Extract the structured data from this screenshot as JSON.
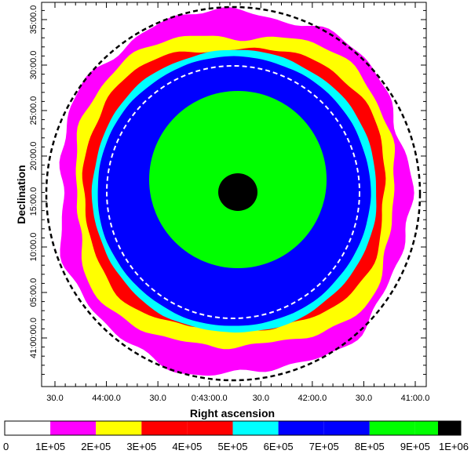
{
  "chart_data": {
    "type": "heatmap",
    "title": "",
    "xlabel": "Right ascension",
    "ylabel": "Declination",
    "x_ticks": [
      "30.0",
      "44:00.0",
      "30.0",
      "0:43:00.0",
      "30.0",
      "42:00.0",
      "30.0",
      "41:00.0"
    ],
    "y_ticks": [
      "41:00:00.0",
      "05:00.0",
      "10:00.0",
      "15:00.0",
      "20:00.0",
      "25:00.0",
      "30:00.0",
      "35:00.0"
    ],
    "colorbar": {
      "labels": [
        "0",
        "1E+05",
        "2E+05",
        "3E+05",
        "4E+05",
        "5E+05",
        "6E+05",
        "7E+05",
        "8E+05",
        "9E+05",
        "1E+06"
      ],
      "bins": [
        {
          "range": [
            0,
            100000
          ],
          "color": "#ffffff"
        },
        {
          "range": [
            100000,
            200000
          ],
          "color": "#ff00ff"
        },
        {
          "range": [
            200000,
            300000
          ],
          "color": "#ffff00"
        },
        {
          "range": [
            300000,
            400000
          ],
          "color": "#ff0000"
        },
        {
          "range": [
            400000,
            500000
          ],
          "color": "#ff0000"
        },
        {
          "range": [
            500000,
            600000
          ],
          "color": "#00ffff"
        },
        {
          "range": [
            600000,
            700000
          ],
          "color": "#0000ff"
        },
        {
          "range": [
            700000,
            800000
          ],
          "color": "#0000ff"
        },
        {
          "range": [
            800000,
            900000
          ],
          "color": "#00ff00"
        },
        {
          "range": [
            900000,
            950000
          ],
          "color": "#00ff00"
        },
        {
          "range": [
            950000,
            1000000
          ],
          "color": "#000000"
        }
      ]
    },
    "contour_levels": [
      {
        "level": "1E+05-2E+05",
        "color": "#ff00ff"
      },
      {
        "level": "2E+05-3E+05",
        "color": "#ffff00"
      },
      {
        "level": "3E+05-5E+05",
        "color": "#ff0000"
      },
      {
        "level": "5E+05-6E+05",
        "color": "#00ffff"
      },
      {
        "level": "6E+05-8E+05",
        "color": "#0000ff"
      },
      {
        "level": "8E+05-9.5E+05",
        "color": "#00ff00"
      },
      {
        "level": ">9.5E+05",
        "color": "#000000"
      }
    ],
    "overlays": [
      {
        "name": "outer-field-boundary",
        "style": "dashed",
        "color": "#000000"
      },
      {
        "name": "inner-field-boundary",
        "style": "dashed",
        "color": "#ffffff"
      }
    ]
  }
}
